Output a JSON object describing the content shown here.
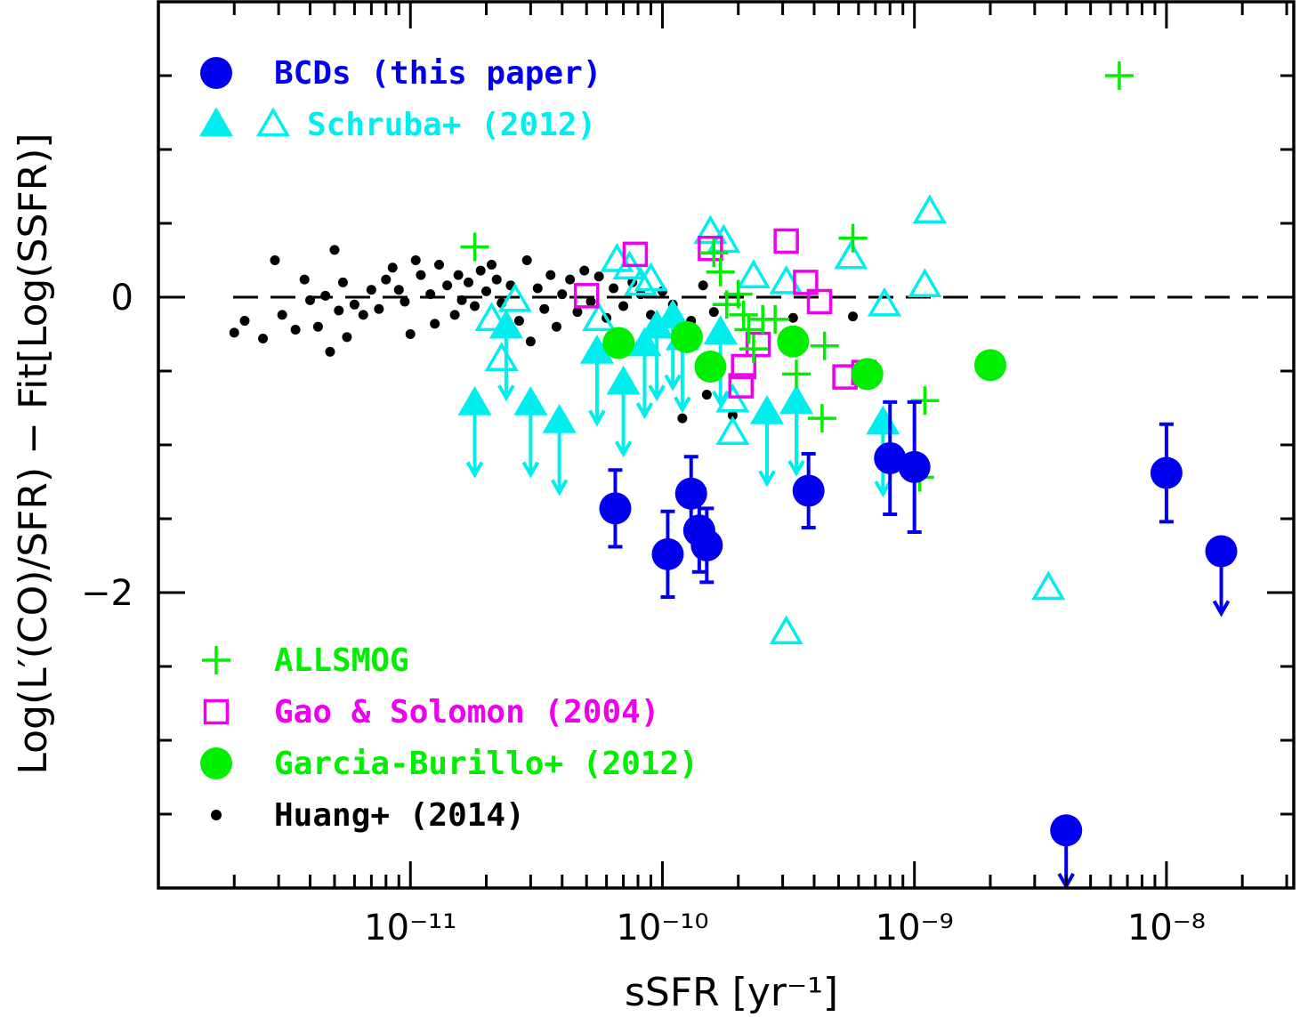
{
  "chart_data": {
    "type": "scatter",
    "xlabel": "sSFR [yr⁻¹]",
    "ylabel": "Log(L′(CO)/SFR) − Fit[Log(SSFR)]",
    "x_scale": "log",
    "xlim": [
      1e-12,
      3.2e-08
    ],
    "ylim": [
      -4.0,
      2.0
    ],
    "x_ticks": [
      {
        "value": 1e-11,
        "label": "10⁻¹¹"
      },
      {
        "value": 1e-10,
        "label": "10⁻¹⁰"
      },
      {
        "value": 1e-09,
        "label": "10⁻⁹"
      },
      {
        "value": 1e-08,
        "label": "10⁻⁸"
      }
    ],
    "y_ticks": [
      {
        "value": 0,
        "label": "0"
      },
      {
        "value": -2,
        "label": "−2"
      }
    ],
    "reference_line": {
      "y": 0,
      "style": "dashed"
    },
    "colors": {
      "bcd": "#0000ee",
      "schruba": "#00eeee",
      "allsmog": "#00ee00",
      "gao": "#ee00ee",
      "garcia": "#00ee00",
      "huang": "#000000"
    },
    "legend_top": [
      {
        "label": "BCDs (this paper)",
        "color": "#0000ee",
        "marker": "filled-circle"
      },
      {
        "label": "Schruba+ (2012)",
        "color": "#00eeee",
        "marker": "filled-and-open-triangle"
      }
    ],
    "legend_bottom": [
      {
        "label": "ALLSMOG",
        "color": "#00ee00",
        "marker": "plus"
      },
      {
        "label": "Gao & Solomon (2004)",
        "color": "#ee00ee",
        "marker": "open-square"
      },
      {
        "label": "Garcia-Burillo+ (2012)",
        "color": "#00ee00",
        "marker": "filled-circle"
      },
      {
        "label": "Huang+ (2014)",
        "color": "#000000",
        "marker": "dot"
      }
    ],
    "series": [
      {
        "name": "BCDs (this paper)",
        "marker": "filled-circle",
        "points": [
          {
            "x": 6.5e-11,
            "y": -1.43,
            "err": 0.26
          },
          {
            "x": 1.05e-10,
            "y": -1.74,
            "err": 0.29
          },
          {
            "x": 1.3e-10,
            "y": -1.33,
            "err": 0.25
          },
          {
            "x": 1.4e-10,
            "y": -1.58,
            "err": 0.28
          },
          {
            "x": 1.5e-10,
            "y": -1.68,
            "err": 0.25
          },
          {
            "x": 3.8e-10,
            "y": -1.31,
            "err": 0.25
          },
          {
            "x": 8e-10,
            "y": -1.09,
            "err": 0.38
          },
          {
            "x": 1e-09,
            "y": -1.15,
            "err": 0.44
          },
          {
            "x": 1e-08,
            "y": -1.19,
            "err": 0.33
          },
          {
            "x": 1.65e-08,
            "y": -1.72,
            "upper_limit": true
          },
          {
            "x": 4e-09,
            "y": -3.61,
            "upper_limit": true
          }
        ]
      },
      {
        "name": "Schruba+ (2012) detections",
        "marker": "filled-triangle",
        "points": [
          {
            "x": 1.8e-11,
            "y": -0.72
          },
          {
            "x": 3e-11,
            "y": -0.72
          },
          {
            "x": 3.9e-11,
            "y": -0.84
          },
          {
            "x": 5.5e-11,
            "y": -0.37
          },
          {
            "x": 7e-11,
            "y": -0.58
          },
          {
            "x": 8.5e-11,
            "y": -0.32
          },
          {
            "x": 9.5e-11,
            "y": -0.2
          },
          {
            "x": 1.1e-10,
            "y": -0.13
          },
          {
            "x": 1.2e-10,
            "y": -0.28
          },
          {
            "x": 1.7e-10,
            "y": -0.24
          },
          {
            "x": 2.6e-10,
            "y": -0.78
          },
          {
            "x": 3.4e-10,
            "y": -0.71
          },
          {
            "x": 7.5e-10,
            "y": -0.85
          },
          {
            "x": 2.4e-11,
            "y": -0.2
          }
        ]
      },
      {
        "name": "Schruba+ (2012) upper limits",
        "marker": "open-triangle",
        "points": [
          {
            "x": 2.1e-11,
            "y": -0.15
          },
          {
            "x": 2.3e-11,
            "y": -0.42
          },
          {
            "x": 2.6e-11,
            "y": -0.02
          },
          {
            "x": 5.6e-11,
            "y": -0.15
          },
          {
            "x": 6.6e-11,
            "y": 0.25
          },
          {
            "x": 7.4e-11,
            "y": 0.2
          },
          {
            "x": 8.2e-11,
            "y": 0.09
          },
          {
            "x": 9e-11,
            "y": 0.12
          },
          {
            "x": 1.55e-10,
            "y": 0.44
          },
          {
            "x": 1.75e-10,
            "y": 0.38
          },
          {
            "x": 1.9e-10,
            "y": -0.7
          },
          {
            "x": 1.9e-10,
            "y": -0.92
          },
          {
            "x": 2.3e-10,
            "y": 0.14
          },
          {
            "x": 3.1e-10,
            "y": 0.1
          },
          {
            "x": 3.1e-10,
            "y": -2.27
          },
          {
            "x": 5.6e-10,
            "y": 0.27
          },
          {
            "x": 7.6e-10,
            "y": -0.05
          },
          {
            "x": 1.1e-09,
            "y": 0.08
          },
          {
            "x": 1.15e-09,
            "y": 0.58
          },
          {
            "x": 3.4e-09,
            "y": -1.97
          }
        ]
      },
      {
        "name": "ALLSMOG",
        "marker": "plus",
        "points": [
          {
            "x": 1.8e-11,
            "y": 0.34
          },
          {
            "x": 1.6e-10,
            "y": 0.3
          },
          {
            "x": 1.7e-10,
            "y": 0.17
          },
          {
            "x": 1.8e-10,
            "y": -0.05
          },
          {
            "x": 2e-10,
            "y": 0.02
          },
          {
            "x": 2.1e-10,
            "y": -0.12
          },
          {
            "x": 2.2e-10,
            "y": -0.22
          },
          {
            "x": 2.3e-10,
            "y": -0.35
          },
          {
            "x": 2.5e-10,
            "y": -0.15
          },
          {
            "x": 2.8e-10,
            "y": -0.15
          },
          {
            "x": 3.4e-10,
            "y": -0.52
          },
          {
            "x": 4.3e-10,
            "y": -0.82
          },
          {
            "x": 4.4e-10,
            "y": -0.33
          },
          {
            "x": 5.7e-10,
            "y": 0.4
          },
          {
            "x": 1.1e-09,
            "y": -0.7
          },
          {
            "x": 1.05e-09,
            "y": -1.22
          },
          {
            "x": 6.5e-09,
            "y": 1.5
          }
        ]
      },
      {
        "name": "Gao & Solomon (2004)",
        "marker": "open-square",
        "points": [
          {
            "x": 5e-11,
            "y": 0.01
          },
          {
            "x": 7.8e-11,
            "y": 0.29
          },
          {
            "x": 1.55e-10,
            "y": 0.33
          },
          {
            "x": 2.1e-10,
            "y": -0.47
          },
          {
            "x": 2.05e-10,
            "y": -0.6
          },
          {
            "x": 2.4e-10,
            "y": -0.32
          },
          {
            "x": 3.1e-10,
            "y": 0.38
          },
          {
            "x": 3.7e-10,
            "y": 0.1
          },
          {
            "x": 4.2e-10,
            "y": -0.03
          },
          {
            "x": 5.3e-10,
            "y": -0.54
          },
          {
            "x": 6.3e-10,
            "y": -0.51
          }
        ]
      },
      {
        "name": "Garcia-Burillo+ (2012)",
        "marker": "filled-circle",
        "points": [
          {
            "x": 6.7e-11,
            "y": -0.31
          },
          {
            "x": 1.25e-10,
            "y": -0.27
          },
          {
            "x": 1.55e-10,
            "y": -0.47
          },
          {
            "x": 3.3e-10,
            "y": -0.3
          },
          {
            "x": 6.5e-10,
            "y": -0.52
          },
          {
            "x": 2e-09,
            "y": -0.46
          }
        ]
      },
      {
        "name": "Huang+ (2014)",
        "marker": "dot",
        "points": [
          {
            "x": 2e-12,
            "y": -0.24
          },
          {
            "x": 2.2e-12,
            "y": -0.16
          },
          {
            "x": 2.6e-12,
            "y": -0.28
          },
          {
            "x": 2.9e-12,
            "y": 0.25
          },
          {
            "x": 3.1e-12,
            "y": -0.12
          },
          {
            "x": 3.5e-12,
            "y": -0.22
          },
          {
            "x": 3.8e-12,
            "y": 0.12
          },
          {
            "x": 4e-12,
            "y": -0.02
          },
          {
            "x": 4.3e-12,
            "y": -0.2
          },
          {
            "x": 4.6e-12,
            "y": 0.01
          },
          {
            "x": 4.8e-12,
            "y": -0.37
          },
          {
            "x": 5e-12,
            "y": 0.32
          },
          {
            "x": 5.2e-12,
            "y": -0.09
          },
          {
            "x": 5.4e-12,
            "y": 0.1
          },
          {
            "x": 5.6e-12,
            "y": -0.27
          },
          {
            "x": 6e-12,
            "y": -0.05
          },
          {
            "x": 6.5e-12,
            "y": -0.12
          },
          {
            "x": 7e-12,
            "y": 0.05
          },
          {
            "x": 7.5e-12,
            "y": -0.08
          },
          {
            "x": 8e-12,
            "y": 0.12
          },
          {
            "x": 8.5e-12,
            "y": 0.2
          },
          {
            "x": 9e-12,
            "y": 0.05
          },
          {
            "x": 9.5e-12,
            "y": -0.03
          },
          {
            "x": 1e-11,
            "y": -0.25
          },
          {
            "x": 1.05e-11,
            "y": 0.25
          },
          {
            "x": 1.1e-11,
            "y": 0.15
          },
          {
            "x": 1.2e-11,
            "y": 0.02
          },
          {
            "x": 1.25e-11,
            "y": -0.18
          },
          {
            "x": 1.3e-11,
            "y": 0.22
          },
          {
            "x": 1.4e-11,
            "y": 0.08
          },
          {
            "x": 1.5e-11,
            "y": -0.12
          },
          {
            "x": 1.55e-11,
            "y": 0.15
          },
          {
            "x": 1.6e-11,
            "y": -0.02
          },
          {
            "x": 1.7e-11,
            "y": 0.1
          },
          {
            "x": 1.8e-11,
            "y": -0.06
          },
          {
            "x": 1.9e-11,
            "y": 0.18
          },
          {
            "x": 2e-11,
            "y": 0.04
          },
          {
            "x": 2.1e-11,
            "y": 0.22
          },
          {
            "x": 2.2e-11,
            "y": 0.12
          },
          {
            "x": 2.3e-11,
            "y": -0.04
          },
          {
            "x": 2.5e-11,
            "y": 0.08
          },
          {
            "x": 2.7e-11,
            "y": -0.16
          },
          {
            "x": 2.9e-11,
            "y": 0.25
          },
          {
            "x": 3e-11,
            "y": -0.3
          },
          {
            "x": 3.2e-11,
            "y": 0.06
          },
          {
            "x": 3.4e-11,
            "y": -0.08
          },
          {
            "x": 3.6e-11,
            "y": 0.15
          },
          {
            "x": 3.8e-11,
            "y": -0.2
          },
          {
            "x": 4e-11,
            "y": 0.02
          },
          {
            "x": 4.3e-11,
            "y": 0.12
          },
          {
            "x": 4.6e-11,
            "y": -0.1
          },
          {
            "x": 4.9e-11,
            "y": 0.18
          },
          {
            "x": 5.2e-11,
            "y": -0.03
          },
          {
            "x": 5.6e-11,
            "y": 0.14
          },
          {
            "x": 6e-11,
            "y": -0.14
          },
          {
            "x": 6.4e-11,
            "y": 0.06
          },
          {
            "x": 7e-11,
            "y": -0.06
          },
          {
            "x": 7.6e-11,
            "y": 0.1
          },
          {
            "x": 8.2e-11,
            "y": 0.02
          },
          {
            "x": 9e-11,
            "y": -0.12
          },
          {
            "x": 1e-10,
            "y": 0.04
          },
          {
            "x": 1.1e-10,
            "y": -0.05
          },
          {
            "x": 1.2e-10,
            "y": -0.82
          },
          {
            "x": 1.3e-10,
            "y": -0.16
          },
          {
            "x": 1.45e-10,
            "y": 0.08
          },
          {
            "x": 1.5e-10,
            "y": -0.66
          },
          {
            "x": 1.6e-10,
            "y": -0.1
          },
          {
            "x": 1.9e-10,
            "y": -0.8
          },
          {
            "x": 3.3e-10,
            "y": -0.14
          },
          {
            "x": 5.7e-10,
            "y": -0.13
          }
        ]
      }
    ]
  }
}
